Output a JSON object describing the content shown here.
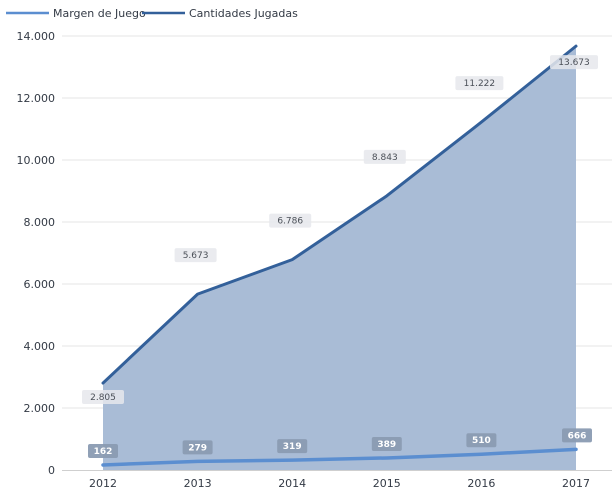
{
  "chart_data": {
    "type": "area",
    "x": [
      "2012",
      "2013",
      "2014",
      "2015",
      "2016",
      "2017"
    ],
    "ylim": [
      0,
      14000
    ],
    "y_ticks": [
      "0",
      "2.000",
      "4.000",
      "6.000",
      "8.000",
      "10.000",
      "12.000",
      "14.000"
    ],
    "y_tick_values": [
      0,
      2000,
      4000,
      6000,
      8000,
      10000,
      12000,
      14000
    ],
    "grid": true,
    "legend_position": "top-left",
    "series": [
      {
        "name": "Margen de Juego",
        "values": [
          162,
          279,
          319,
          389,
          510,
          666
        ],
        "labels": [
          "162",
          "279",
          "319",
          "389",
          "510",
          "666"
        ],
        "color": "#5b8ed0"
      },
      {
        "name": "Cantidades Jugadas",
        "values": [
          2805,
          5673,
          6786,
          8843,
          11222,
          13673
        ],
        "labels": [
          "2.805",
          "5.673",
          "6.786",
          "8.843",
          "11.222",
          "13.673"
        ],
        "color": "#33609a",
        "fill": "#a9bcd6"
      }
    ]
  }
}
